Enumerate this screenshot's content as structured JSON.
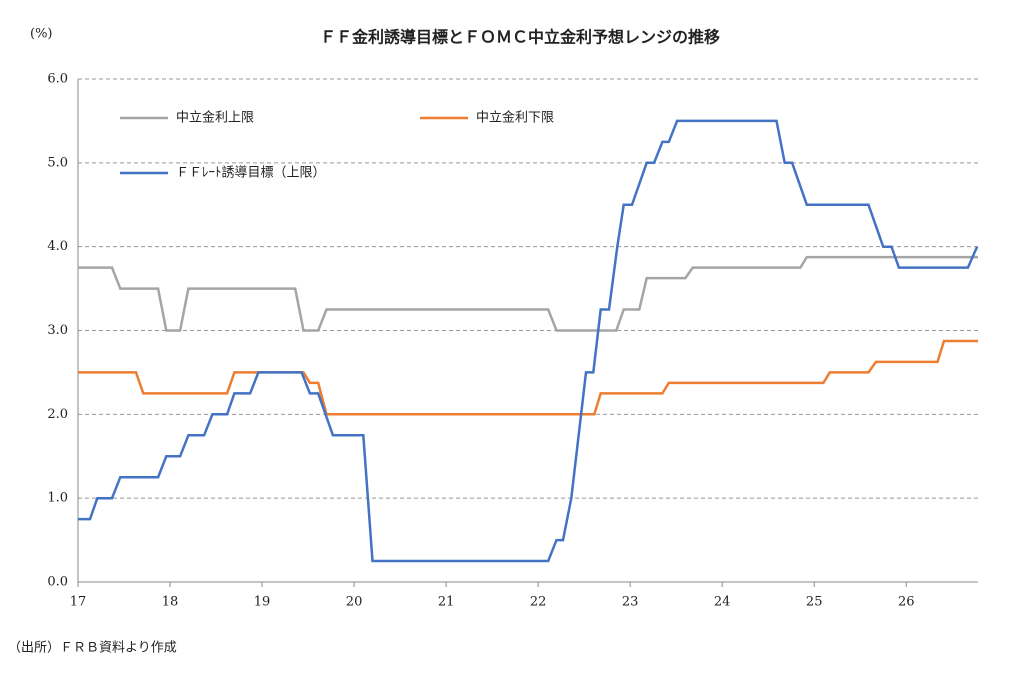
{
  "chart_data": {
    "type": "line",
    "title": "ＦＦ金利誘導目標とＦＯＭＣ中立金利予想レンジの推移",
    "y_label": "(%)",
    "source": "（出所）ＦＲＢ資料より作成",
    "xlim": [
      17,
      26.78
    ],
    "xticks": [
      17,
      18,
      19,
      20,
      21,
      22,
      23,
      24,
      25,
      26
    ],
    "ylim": [
      0,
      6
    ],
    "yticks": [
      {
        "value": 0,
        "label": "0.0"
      },
      {
        "value": 1,
        "label": "1.0"
      },
      {
        "value": 2,
        "label": "2.0"
      },
      {
        "value": 3,
        "label": "3.0"
      },
      {
        "value": 4,
        "label": "4.0"
      },
      {
        "value": 5,
        "label": "5.0"
      },
      {
        "value": 6,
        "label": "6.0"
      }
    ],
    "grid": true,
    "series": [
      {
        "name": "中立金利上限",
        "color": "#a5a5a5",
        "x": [
          17.0,
          17.37,
          17.46,
          17.87,
          17.96,
          18.11,
          18.2,
          19.36,
          19.45,
          19.61,
          19.7,
          22.11,
          22.2,
          22.85,
          22.93,
          23.1,
          23.18,
          23.6,
          23.68,
          24.85,
          24.92,
          26.78
        ],
        "values": [
          3.75,
          3.75,
          3.5,
          3.5,
          3.0,
          3.0,
          3.5,
          3.5,
          3.0,
          3.0,
          3.25,
          3.25,
          3.0,
          3.0,
          3.25,
          3.25,
          3.625,
          3.625,
          3.75,
          3.75,
          3.875,
          3.875
        ]
      },
      {
        "name": "中立金利下限",
        "color": "#ed7d31",
        "x": [
          17.0,
          17.63,
          17.71,
          18.62,
          18.7,
          19.45,
          19.52,
          19.61,
          19.7,
          22.61,
          22.68,
          23.35,
          23.42,
          25.1,
          25.17,
          25.59,
          25.67,
          26.34,
          26.41,
          26.78
        ],
        "values": [
          2.5,
          2.5,
          2.25,
          2.25,
          2.5,
          2.5,
          2.375,
          2.375,
          2.0,
          2.0,
          2.25,
          2.25,
          2.375,
          2.375,
          2.5,
          2.5,
          2.625,
          2.625,
          2.875,
          2.875
        ]
      },
      {
        "name": "ＦＦﾚｰﾄ誘導目標（上限）",
        "color": "#4472c4",
        "x": [
          17.0,
          17.13,
          17.21,
          17.37,
          17.46,
          17.87,
          17.96,
          18.11,
          18.2,
          18.37,
          18.46,
          18.62,
          18.7,
          18.87,
          18.96,
          19.43,
          19.52,
          19.61,
          19.77,
          20.1,
          20.2,
          22.11,
          22.2,
          22.27,
          22.36,
          22.52,
          22.6,
          22.68,
          22.77,
          22.86,
          22.93,
          23.02,
          23.18,
          23.26,
          23.35,
          23.42,
          23.51,
          24.59,
          24.68,
          24.76,
          24.92,
          25.59,
          25.75,
          25.84,
          25.92,
          26.67,
          26.77
        ],
        "values": [
          0.75,
          0.75,
          1.0,
          1.0,
          1.25,
          1.25,
          1.5,
          1.5,
          1.75,
          1.75,
          2.0,
          2.0,
          2.25,
          2.25,
          2.5,
          2.5,
          2.25,
          2.25,
          1.75,
          1.75,
          0.25,
          0.25,
          0.5,
          0.5,
          1.0,
          2.5,
          2.5,
          3.25,
          3.25,
          4.0,
          4.5,
          4.5,
          5.0,
          5.0,
          5.25,
          5.25,
          5.5,
          5.5,
          5.0,
          5.0,
          4.5,
          4.5,
          4.0,
          4.0,
          3.75,
          3.75,
          4.0
        ]
      }
    ]
  }
}
